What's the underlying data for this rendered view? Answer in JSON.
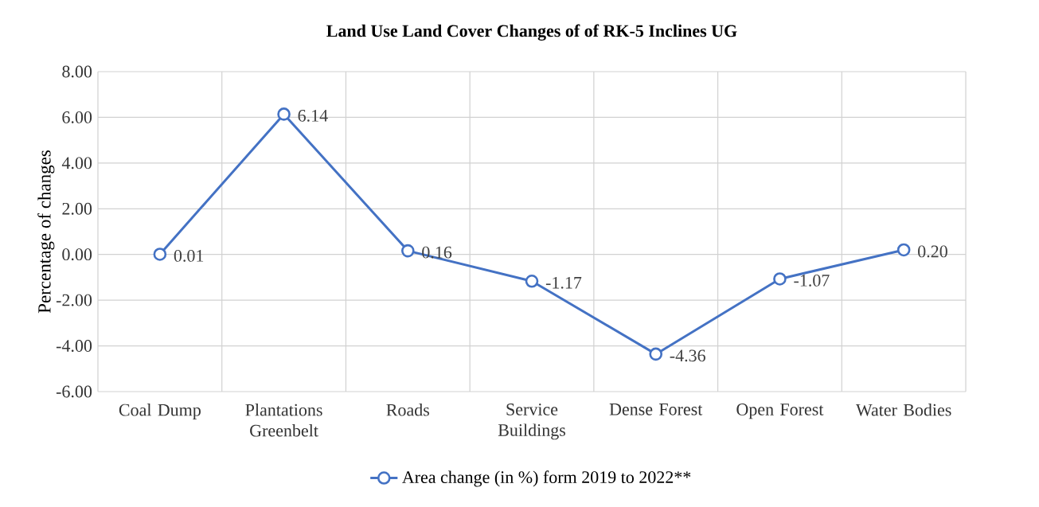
{
  "chart_data": {
    "type": "line",
    "title": "Land Use Land Cover Changes  of  of RK-5 Inclines UG",
    "ylabel": "Percentage of changes",
    "categories": [
      "Coal Dump",
      "Plantations Greenbelt",
      "Roads",
      "Service Buildings",
      "Dense Forest",
      "Open Forest",
      "Water Bodies"
    ],
    "series": [
      {
        "name": "Area change (in %) form 2019 to 2022**",
        "color": "#4472c4",
        "values": [
          0.01,
          6.14,
          0.16,
          -1.17,
          -4.36,
          -1.07,
          0.2
        ],
        "value_labels": [
          "0.01",
          "6.14",
          "0.16",
          "-1.17",
          "-4.36",
          "-1.07",
          "0.20"
        ]
      }
    ],
    "ylim": [
      -6,
      8
    ],
    "yticks": [
      {
        "value": -6,
        "label": "-6.00"
      },
      {
        "value": -4,
        "label": "-4.00"
      },
      {
        "value": -2,
        "label": "-2.00"
      },
      {
        "value": 0,
        "label": "0.00"
      },
      {
        "value": 2,
        "label": "2.00"
      },
      {
        "value": 4,
        "label": "4.00"
      },
      {
        "value": 6,
        "label": "6.00"
      },
      {
        "value": 8,
        "label": "8.00"
      }
    ],
    "grid": true,
    "legend": "bottom",
    "marker": "circle",
    "line_style": "solid"
  }
}
